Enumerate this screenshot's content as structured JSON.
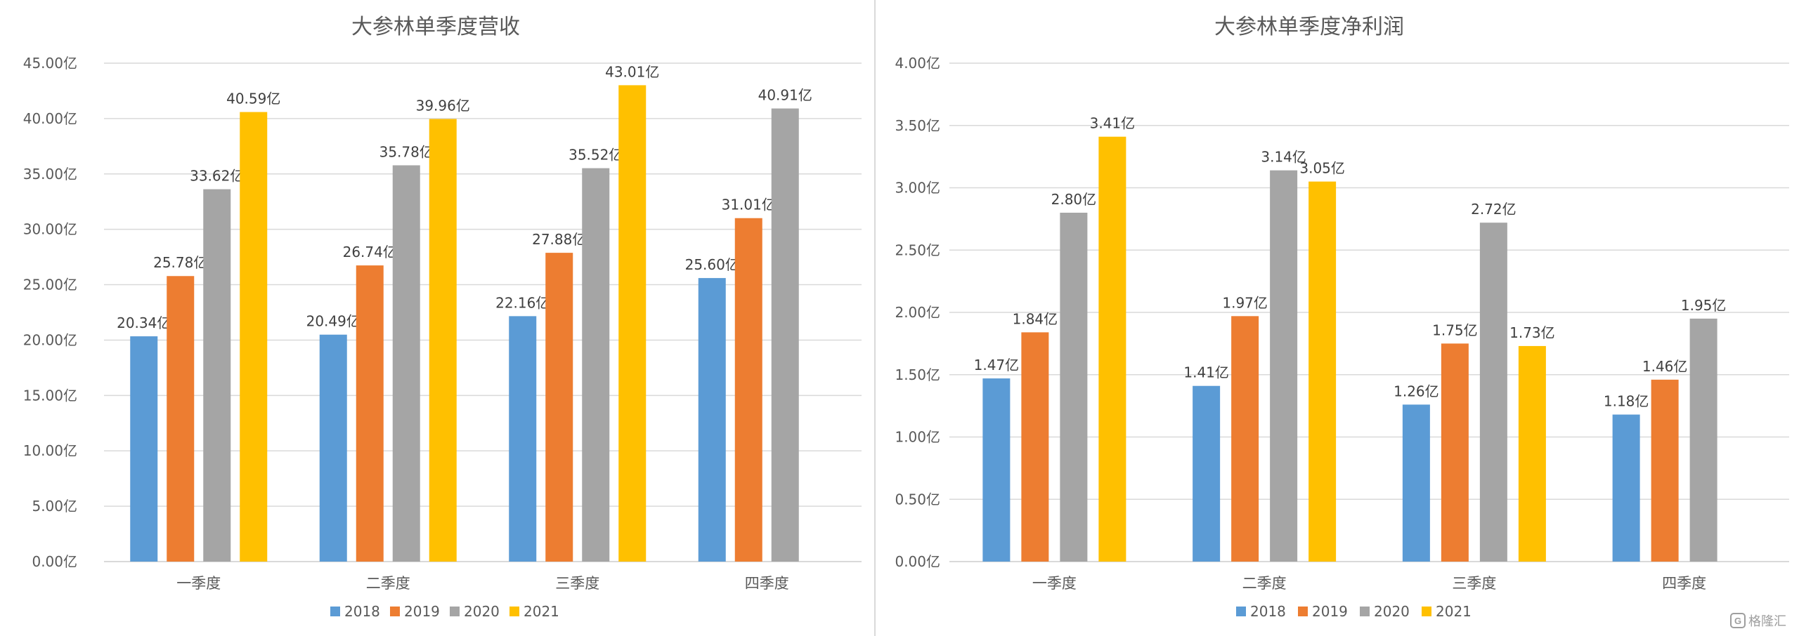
{
  "colors": {
    "series": [
      "#5b9bd5",
      "#ed7d31",
      "#a5a5a5",
      "#ffc000"
    ],
    "gridline": "#d9d9d9",
    "axis_text": "#595959",
    "title_text": "#595959"
  },
  "watermark": {
    "text": "格隆汇",
    "icon": "gelonghui-logo-icon"
  },
  "chart_data": [
    {
      "type": "bar",
      "title": "大参林单季度营收",
      "xlabel": "",
      "ylabel": "",
      "unit": "亿",
      "categories": [
        "一季度",
        "二季度",
        "三季度",
        "四季度"
      ],
      "y_ticks": [
        "0.00亿",
        "5.00亿",
        "10.00亿",
        "15.00亿",
        "20.00亿",
        "25.00亿",
        "30.00亿",
        "35.00亿",
        "40.00亿",
        "45.00亿"
      ],
      "ylim": [
        0,
        45
      ],
      "grid": true,
      "legend_position": "bottom",
      "series": [
        {
          "name": "2018",
          "values": [
            20.34,
            20.49,
            22.16,
            25.6
          ],
          "labels": [
            "20.34亿",
            "20.49亿",
            "22.16亿",
            "25.60亿"
          ]
        },
        {
          "name": "2019",
          "values": [
            25.78,
            26.74,
            27.88,
            31.01
          ],
          "labels": [
            "25.78亿",
            "26.74亿",
            "27.88亿",
            "31.01亿"
          ]
        },
        {
          "name": "2020",
          "values": [
            33.62,
            35.78,
            35.52,
            40.91
          ],
          "labels": [
            "33.62亿",
            "35.78亿",
            "35.52亿",
            "40.91亿"
          ]
        },
        {
          "name": "2021",
          "values": [
            40.59,
            39.96,
            43.01,
            null
          ],
          "labels": [
            "40.59亿",
            "39.96亿",
            "43.01亿",
            null
          ]
        }
      ]
    },
    {
      "type": "bar",
      "title": "大参林单季度净利润",
      "xlabel": "",
      "ylabel": "",
      "unit": "亿",
      "categories": [
        "一季度",
        "二季度",
        "三季度",
        "四季度"
      ],
      "y_ticks": [
        "0.00亿",
        "0.50亿",
        "1.00亿",
        "1.50亿",
        "2.00亿",
        "2.50亿",
        "3.00亿",
        "3.50亿",
        "4.00亿"
      ],
      "ylim": [
        0,
        4
      ],
      "grid": true,
      "legend_position": "bottom",
      "series": [
        {
          "name": "2018",
          "values": [
            1.47,
            1.41,
            1.26,
            1.18
          ],
          "labels": [
            "1.47亿",
            "1.41亿",
            "1.26亿",
            "1.18亿"
          ]
        },
        {
          "name": "2019",
          "values": [
            1.84,
            1.97,
            1.75,
            1.46
          ],
          "labels": [
            "1.84亿",
            "1.97亿",
            "1.75亿",
            "1.46亿"
          ]
        },
        {
          "name": "2020",
          "values": [
            2.8,
            3.14,
            2.72,
            1.95
          ],
          "labels": [
            "2.80亿",
            "3.14亿",
            "2.72亿",
            "1.95亿"
          ]
        },
        {
          "name": "2021",
          "values": [
            3.41,
            3.05,
            1.73,
            null
          ],
          "labels": [
            "3.41亿",
            "3.05亿",
            "1.73亿",
            null
          ]
        }
      ]
    }
  ]
}
